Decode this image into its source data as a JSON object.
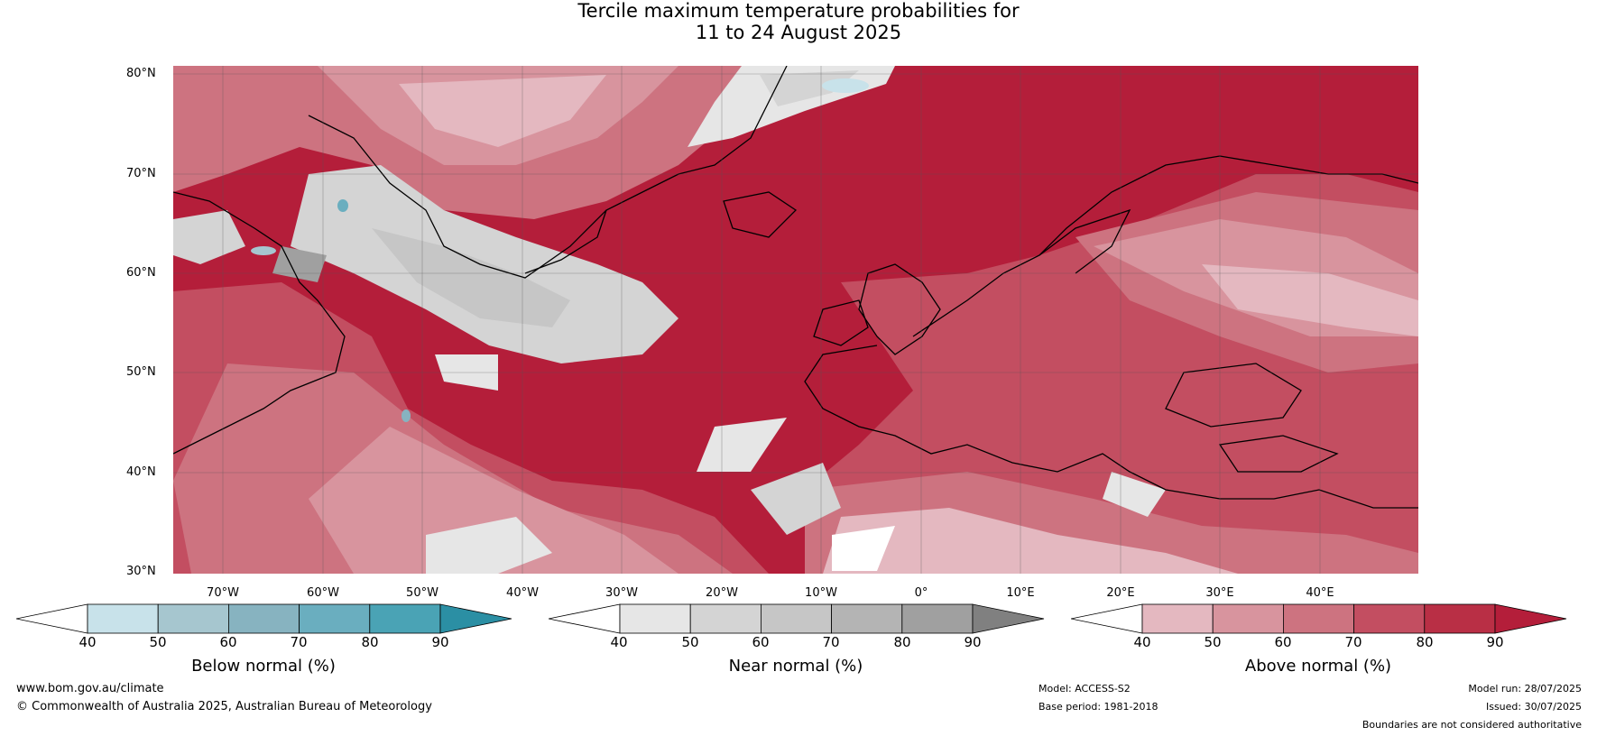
{
  "title_line1": "Tercile maximum temperature probabilities for",
  "title_line2": "11 to 24 August 2025",
  "lat_labels": [
    "80°N",
    "70°N",
    "60°N",
    "50°N",
    "40°N",
    "30°N"
  ],
  "lon_labels": [
    "70°W",
    "60°W",
    "50°W",
    "40°W",
    "30°W",
    "20°W",
    "10°W",
    "0°",
    "10°E",
    "20°E",
    "30°E",
    "40°E"
  ],
  "colorbars": [
    {
      "title": "Below normal (%)",
      "ticks": [
        "40",
        "50",
        "60",
        "70",
        "80",
        "90"
      ],
      "colors": [
        "#ffffff",
        "#c8e2ea",
        "#a6c6cf",
        "#87b3c0",
        "#6aaebf",
        "#4aa3b5",
        "#2b8fa4"
      ]
    },
    {
      "title": "Near normal (%)",
      "ticks": [
        "40",
        "50",
        "60",
        "70",
        "80",
        "90"
      ],
      "colors": [
        "#ffffff",
        "#e6e6e6",
        "#d4d4d4",
        "#c6c6c6",
        "#b4b4b4",
        "#a0a0a0",
        "#808080"
      ]
    },
    {
      "title": "Above normal (%)",
      "ticks": [
        "40",
        "50",
        "60",
        "70",
        "80",
        "90"
      ],
      "colors": [
        "#ffffff",
        "#e4b8c0",
        "#d8949e",
        "#cd7380",
        "#c34e61",
        "#b92f45",
        "#b41e3a"
      ]
    }
  ],
  "footer": {
    "website": "www.bom.gov.au/climate",
    "copyright": "© Commonwealth of Australia 2025, Australian Bureau of Meteorology",
    "model": "Model: ACCESS-S2",
    "base_period": "Base period: 1981-2018",
    "model_run": "Model run: 28/07/2025",
    "issued": "Issued: 30/07/2025",
    "disclaimer": "Boundaries are not considered authoritative"
  }
}
